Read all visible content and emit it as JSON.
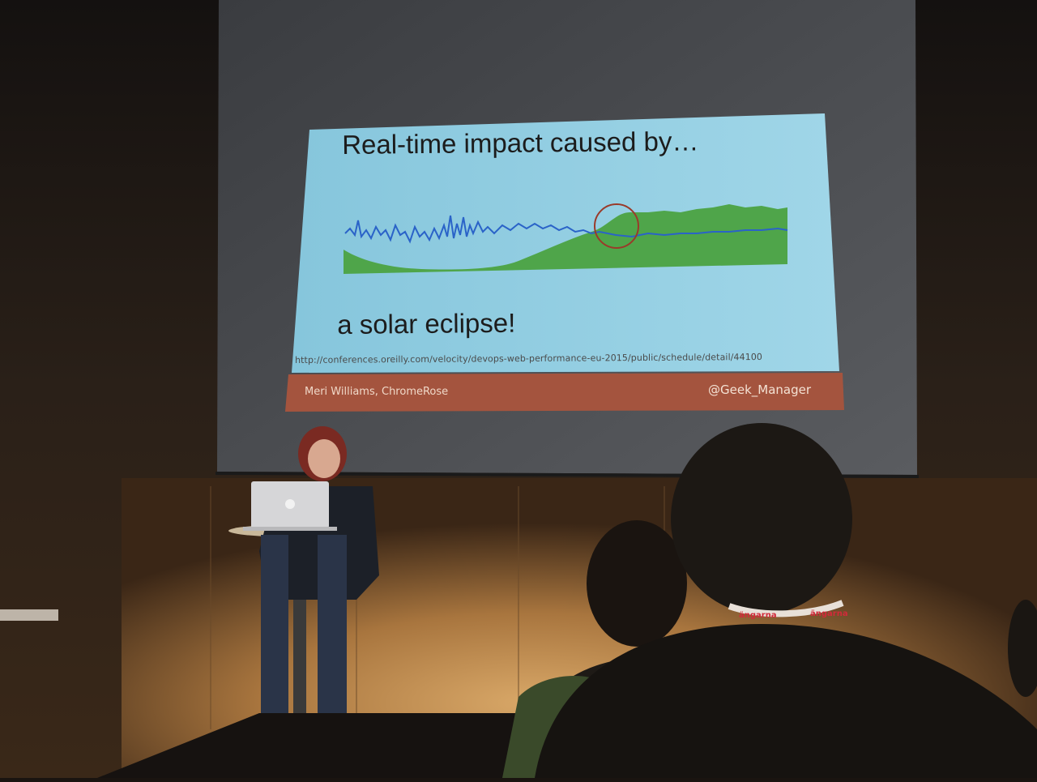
{
  "slide": {
    "title": "Real-time impact caused by…",
    "subtitle": "a solar eclipse!",
    "url": "http://conferences.oreilly.com/velocity/devops-web-performance-eu-2015/public/schedule/detail/44100",
    "footer_left": "Meri Williams, ChromeRose",
    "footer_right": "@Geek_Manager"
  },
  "colors": {
    "slide_bg": "#8fcfe4",
    "footer_bar": "#a4543e",
    "green_area": "#4fa54a",
    "blue_line": "#2a63c8",
    "circle": "#9a3a2a"
  },
  "badges": {
    "left": "ängarna",
    "right": "ängarna"
  }
}
